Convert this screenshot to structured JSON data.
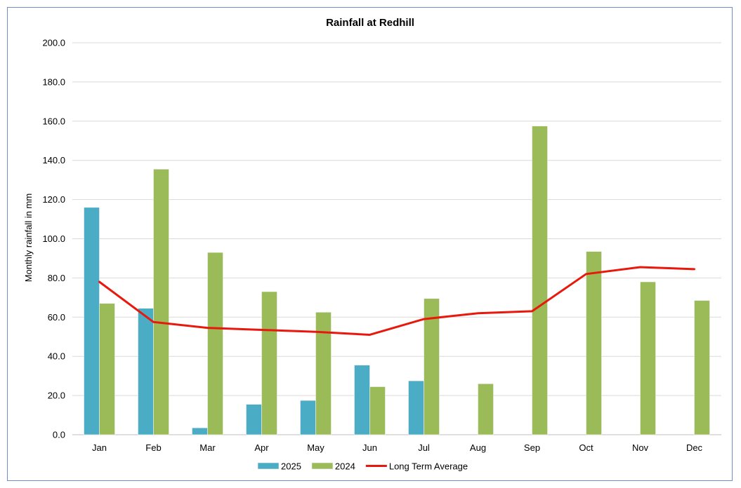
{
  "chart_data": {
    "type": "bar",
    "title": "Rainfall at Redhill",
    "ylabel": "Monthly rainfall in mm",
    "xlabel": "",
    "ylim": [
      0,
      200
    ],
    "yticks": [
      "0.0",
      "20.0",
      "40.0",
      "60.0",
      "80.0",
      "100.0",
      "120.0",
      "140.0",
      "160.0",
      "180.0",
      "200.0"
    ],
    "categories": [
      "Jan",
      "Feb",
      "Mar",
      "Apr",
      "May",
      "Jun",
      "Jul",
      "Aug",
      "Sep",
      "Oct",
      "Nov",
      "Dec"
    ],
    "grid": true,
    "legend_position": "bottom",
    "series": [
      {
        "name": "2025",
        "type": "bar",
        "color": "#4bacc6",
        "values": [
          116,
          64.5,
          3.5,
          15.5,
          17.5,
          35.5,
          27.5,
          null,
          null,
          null,
          null,
          null
        ]
      },
      {
        "name": "2024",
        "type": "bar",
        "color": "#9bbb59",
        "values": [
          67,
          135.5,
          93,
          73,
          62.5,
          24.5,
          69.5,
          26,
          157.5,
          93.5,
          78,
          68.5
        ]
      },
      {
        "name": "Long Term Average",
        "type": "line",
        "color": "#e8190c",
        "values": [
          78,
          57.5,
          54.5,
          53.5,
          52.5,
          51,
          59,
          62,
          63,
          82,
          85.5,
          84.5
        ]
      }
    ]
  }
}
